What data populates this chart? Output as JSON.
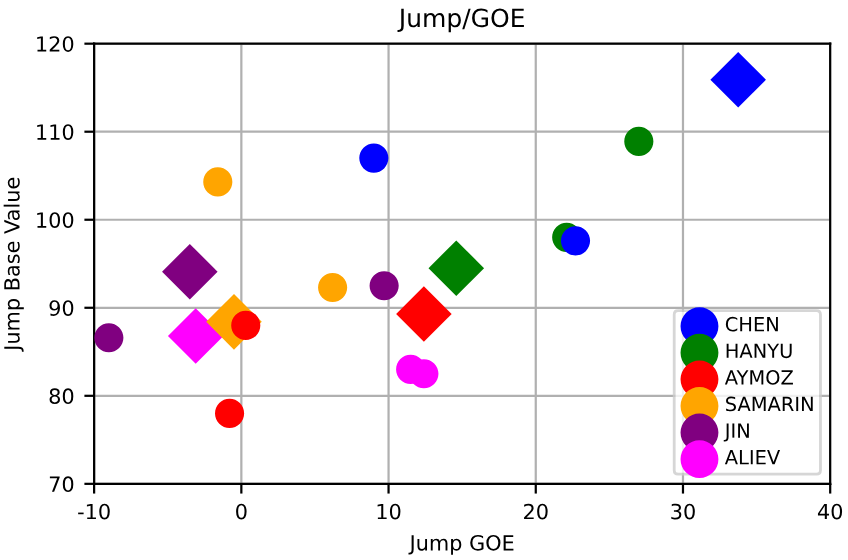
{
  "chart_data": {
    "type": "scatter",
    "title": "Jump/GOE",
    "xlabel": "Jump GOE",
    "ylabel": "Jump Base Value",
    "xlim": [
      -10,
      40
    ],
    "xticks": [
      -10,
      0,
      10,
      20,
      30,
      40
    ],
    "ylim": [
      70,
      120
    ],
    "yticks": [
      70,
      80,
      90,
      100,
      110,
      120
    ],
    "grid": true,
    "legend": "bottom right",
    "marker": "circle",
    "series": [
      {
        "name": "CHEN",
        "color": "#0000ff",
        "x": [
          9.0,
          22.7
        ],
        "values": [
          107.0,
          97.6
        ]
      },
      {
        "name": "HANYU",
        "color": "#008000",
        "x": [
          27.0,
          22.1
        ],
        "values": [
          108.9,
          98.0
        ]
      },
      {
        "name": "AYMOZ",
        "color": "#ff0000",
        "x": [
          0.3,
          -0.8
        ],
        "values": [
          88.0,
          78.0
        ]
      },
      {
        "name": "SAMARIN",
        "color": "#ffa500",
        "x": [
          -1.6,
          6.2
        ],
        "values": [
          104.3,
          92.3
        ]
      },
      {
        "name": "JIN",
        "color": "#800080",
        "x": [
          -9.0,
          9.7
        ],
        "values": [
          86.6,
          92.5
        ]
      },
      {
        "name": "ALIEV",
        "color": "#ff00ff",
        "x": [
          11.5,
          12.4
        ],
        "values": [
          83.0,
          82.5
        ]
      },
      {
        "color": "#0000ff",
        "marker": "diamond",
        "x": [
          33.75
        ],
        "values": [
          115.9
        ]
      },
      {
        "color": "#008000",
        "marker": "diamond",
        "x": [
          14.6
        ],
        "values": [
          94.5
        ]
      },
      {
        "color": "#ff0000",
        "marker": "diamond",
        "x": [
          12.4
        ],
        "values": [
          89.3
        ]
      },
      {
        "color": "#ffa500",
        "marker": "diamond",
        "x": [
          -0.5
        ],
        "values": [
          88.4
        ]
      },
      {
        "color": "#800080",
        "marker": "diamond",
        "x": [
          -3.5
        ],
        "values": [
          94.1
        ]
      },
      {
        "color": "#ff00ff",
        "marker": "diamond",
        "x": [
          -3.1
        ],
        "values": [
          86.8
        ]
      }
    ]
  }
}
